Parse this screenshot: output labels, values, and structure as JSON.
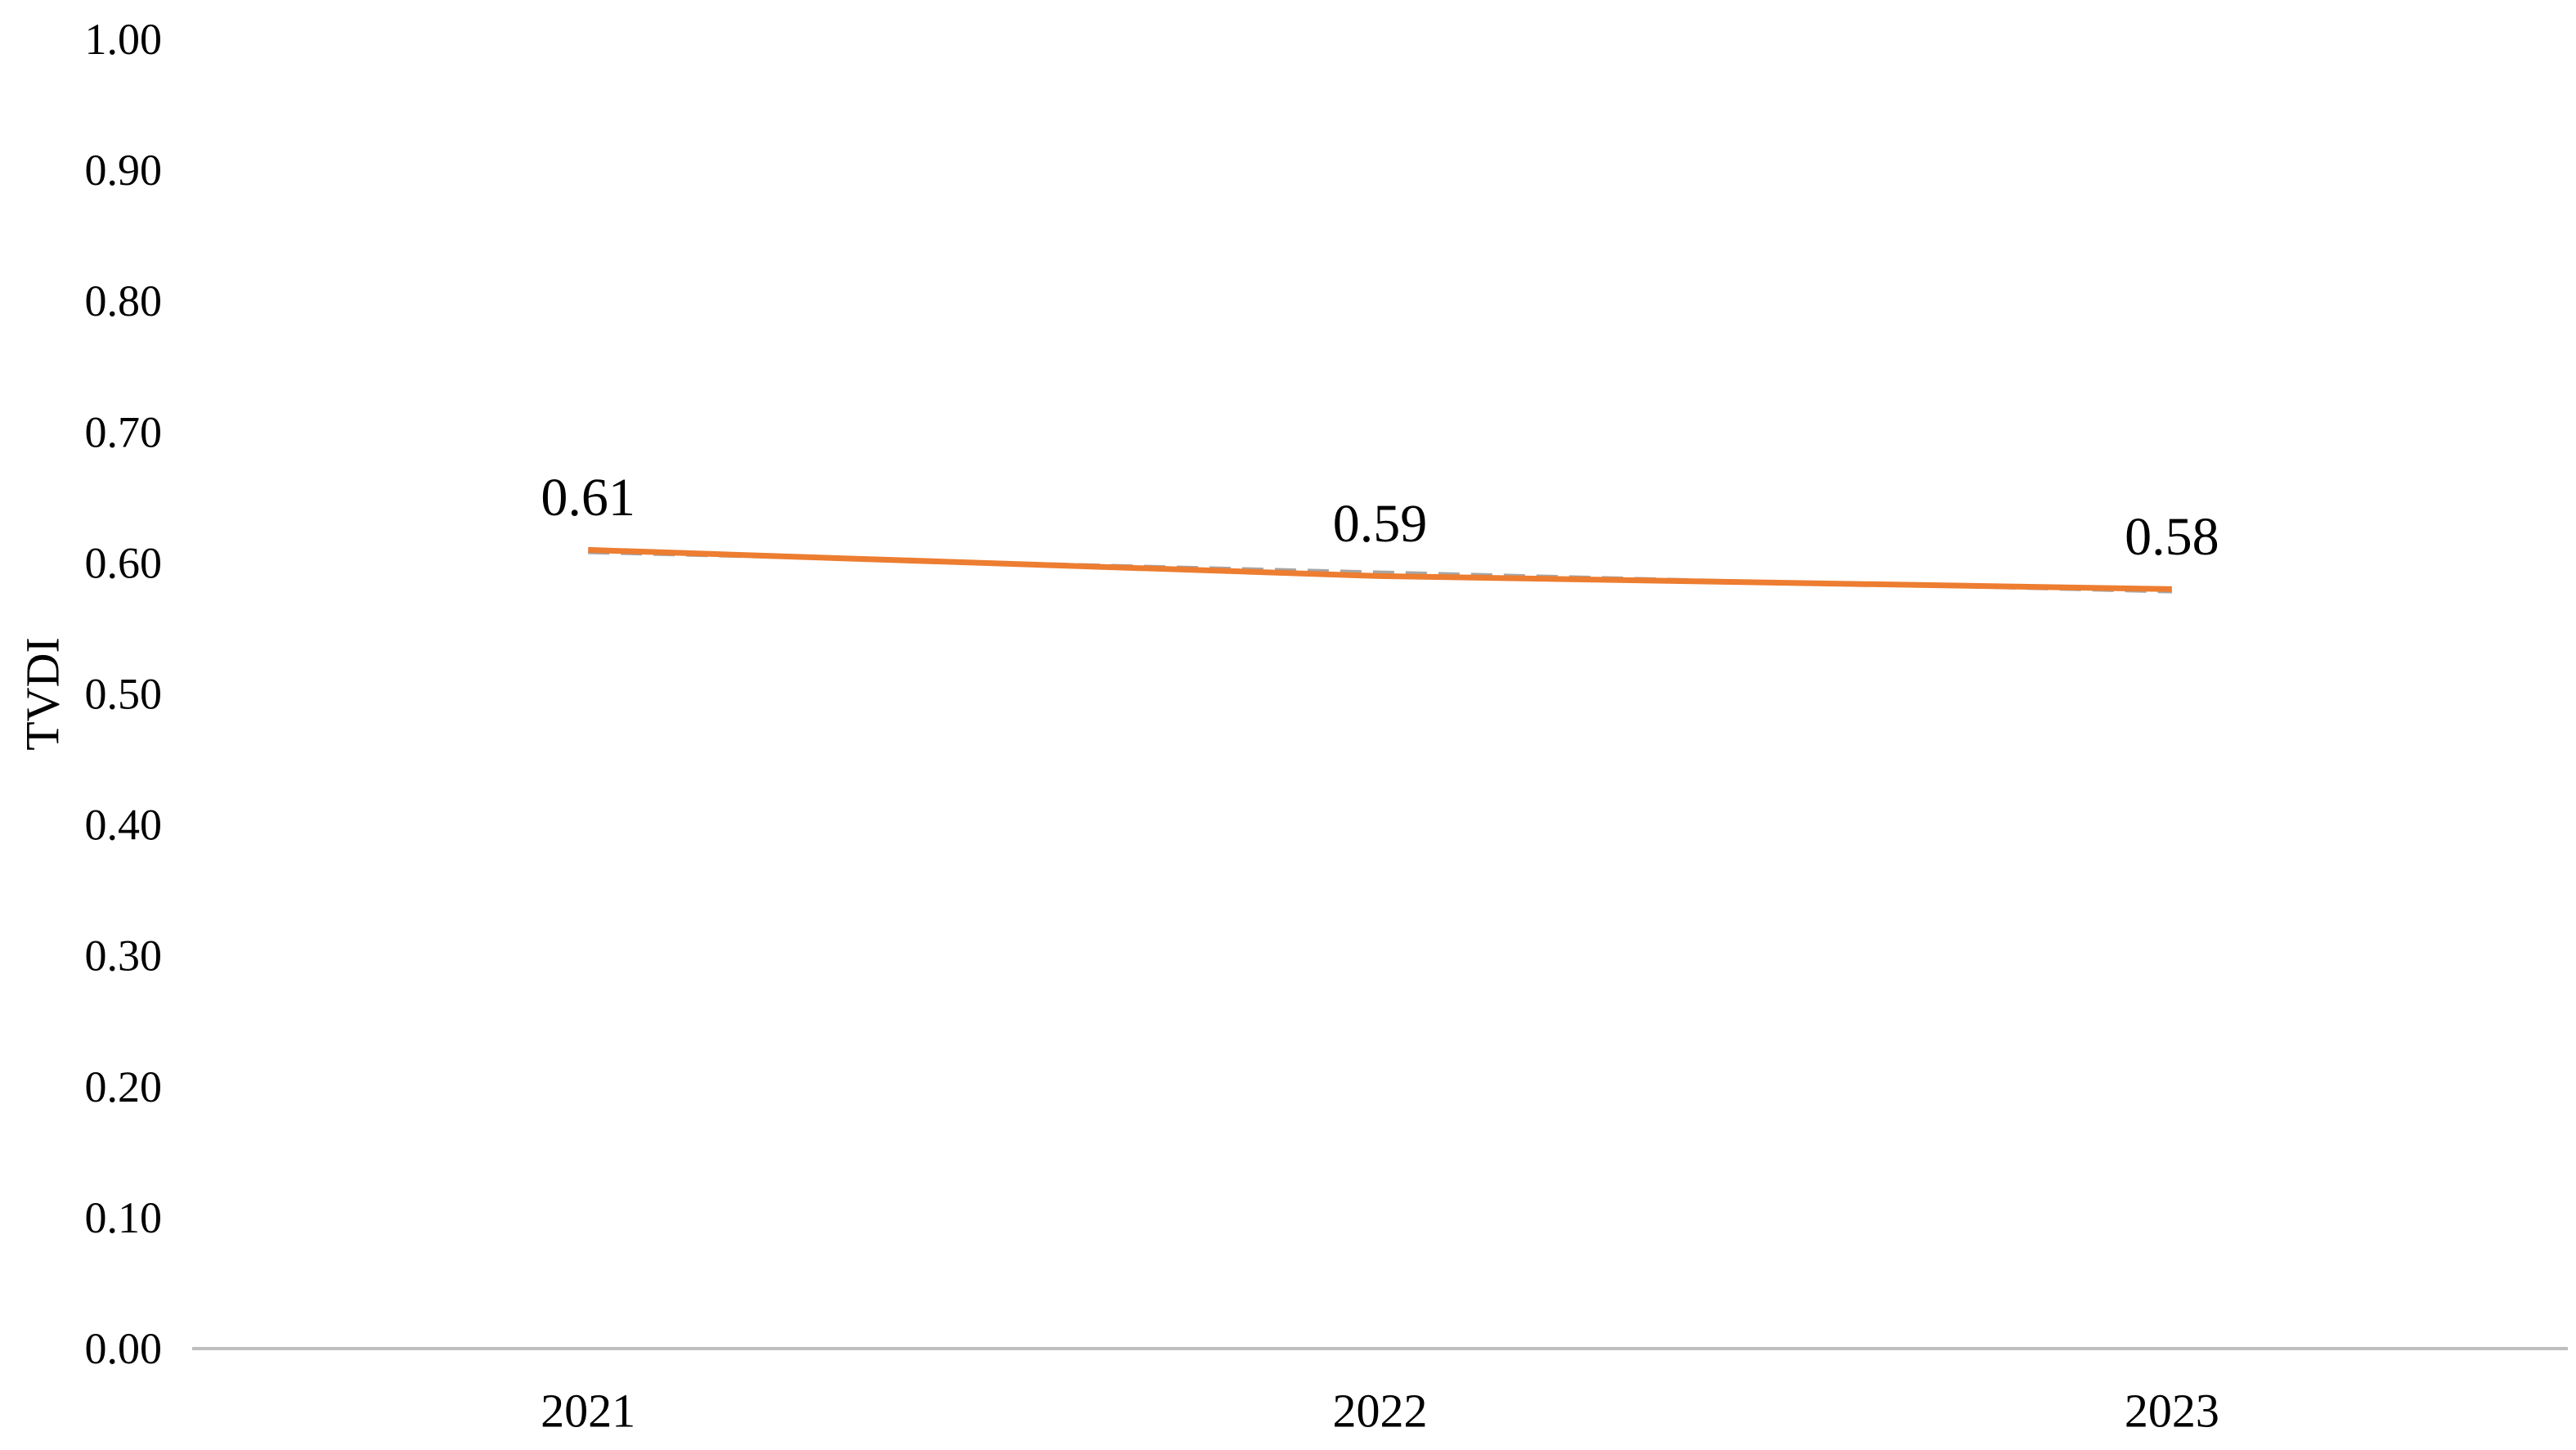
{
  "page": {
    "background": "#FFFFFF"
  },
  "chart_data": {
    "type": "line",
    "title": "",
    "xlabel": "",
    "ylabel": "TVDI",
    "categories": [
      "2021",
      "2022",
      "2023"
    ],
    "series": [
      {
        "name": "TVDI",
        "values": [
          0.61,
          0.59,
          0.58
        ],
        "color": "#ED7D31",
        "stroke_width": 7
      }
    ],
    "data_labels": [
      "0.61",
      "0.59",
      "0.58"
    ],
    "trendline": {
      "type": "linear",
      "values": [
        0.608,
        0.593,
        0.578
      ],
      "color": "#A6A6A6",
      "dashed": true,
      "stroke_width": 4
    },
    "ylim": [
      0,
      1
    ],
    "ytick_step": 0.1,
    "ytick_labels": [
      "0.00",
      "0.10",
      "0.20",
      "0.30",
      "0.40",
      "0.50",
      "0.60",
      "0.70",
      "0.80",
      "0.90",
      "1.00"
    ],
    "grid": false,
    "legend": false,
    "axis_color": "#BFBFBF",
    "text_color": "#000000"
  }
}
